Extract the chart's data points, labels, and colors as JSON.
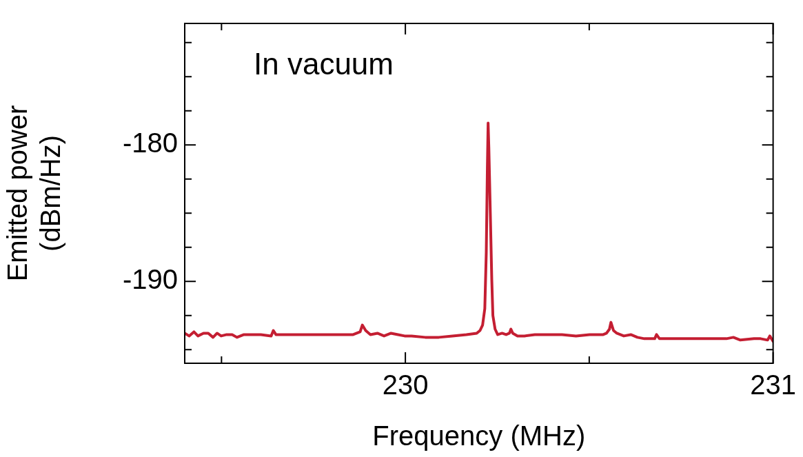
{
  "chart_data": {
    "type": "line",
    "xlabel": "Frequency (MHz)",
    "ylabel": "Emitted power (dBm/Hz)",
    "annotations": [
      "In vacuum"
    ],
    "x": [
      229.4,
      229.412,
      229.425,
      229.436,
      229.451,
      229.464,
      229.477,
      229.488,
      229.499,
      229.514,
      229.529,
      229.542,
      229.561,
      229.579,
      229.607,
      229.635,
      229.641,
      229.648,
      229.682,
      229.719,
      229.756,
      229.803,
      229.821,
      229.858,
      229.877,
      229.883,
      229.892,
      229.905,
      229.924,
      229.942,
      229.961,
      229.98,
      229.998,
      230.017,
      230.054,
      230.091,
      230.128,
      230.166,
      230.194,
      230.203,
      230.21,
      230.216,
      230.22,
      230.223,
      230.225,
      230.227,
      230.231,
      230.235,
      230.238,
      230.244,
      230.251,
      230.263,
      230.274,
      230.283,
      230.287,
      230.292,
      230.305,
      230.324,
      230.352,
      230.389,
      230.426,
      230.464,
      230.501,
      230.538,
      230.547,
      230.555,
      230.559,
      230.566,
      230.575,
      230.594,
      230.613,
      230.631,
      230.65,
      230.678,
      230.683,
      230.691,
      230.724,
      230.762,
      230.799,
      230.836,
      230.873,
      230.892,
      230.911,
      230.948,
      230.966,
      230.985,
      230.991,
      231
    ],
    "series": [
      {
        "color": "#c41e32",
        "values": [
          -193.8,
          -194.0,
          -193.7,
          -194.0,
          -193.8,
          -193.8,
          -194.1,
          -193.8,
          -194.0,
          -193.9,
          -193.9,
          -194.1,
          -193.9,
          -193.9,
          -193.9,
          -194.0,
          -193.6,
          -193.9,
          -193.9,
          -193.9,
          -193.9,
          -193.9,
          -193.9,
          -193.9,
          -193.7,
          -193.2,
          -193.6,
          -193.9,
          -193.8,
          -194.0,
          -193.8,
          -193.9,
          -194.0,
          -194.0,
          -194.1,
          -194.1,
          -194.0,
          -193.9,
          -193.8,
          -193.6,
          -193.2,
          -192.0,
          -187.9,
          -181.7,
          -178.4,
          -180.2,
          -185.0,
          -189.9,
          -192.5,
          -193.5,
          -193.9,
          -193.8,
          -193.9,
          -193.8,
          -193.5,
          -193.8,
          -194.0,
          -194.0,
          -193.9,
          -193.9,
          -193.9,
          -194.0,
          -193.9,
          -193.9,
          -193.8,
          -193.5,
          -193.0,
          -193.6,
          -193.8,
          -194.0,
          -193.9,
          -194.1,
          -194.2,
          -194.2,
          -193.9,
          -194.2,
          -194.2,
          -194.2,
          -194.2,
          -194.2,
          -194.2,
          -194.1,
          -194.3,
          -194.2,
          -194.2,
          -194.3,
          -194.0,
          -194.4
        ]
      }
    ],
    "xlim": [
      229.4,
      231
    ],
    "ylim": [
      -196,
      -171.1
    ],
    "xticks": [
      {
        "value": 229.5,
        "label": null
      },
      230,
      {
        "value": 230.5,
        "label": null
      },
      231
    ],
    "yticks": [
      {
        "value": -195,
        "label": null
      },
      {
        "value": -192.5,
        "label": null
      },
      -190,
      {
        "value": -187.5,
        "label": null
      },
      {
        "value": -185,
        "label": null
      },
      {
        "value": -182.5,
        "label": null
      },
      -180,
      {
        "value": -177.5,
        "label": null
      },
      {
        "value": -175,
        "label": null
      },
      {
        "value": -172.5,
        "label": null
      }
    ],
    "grid": false,
    "legend": false,
    "marker": "none",
    "line_style": "solid"
  }
}
